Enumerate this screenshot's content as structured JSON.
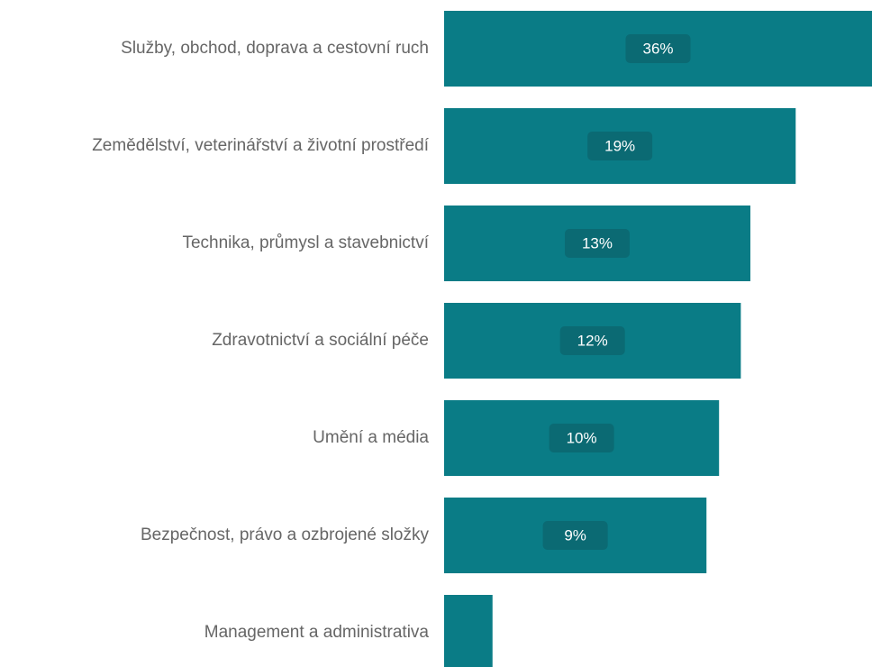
{
  "chart_data": {
    "type": "bar",
    "orientation": "horizontal",
    "log_scale": true,
    "categories": [
      "Služby, obchod, doprava a cestovní ruch",
      "Zemědělství, veterinářství a životní prostředí",
      "Technika, průmysl a stavebnictví",
      "Zdravotnictví a sociální péče",
      "Umění a média",
      "Bezpečnost, právo a ozbrojené složky",
      "Management a administrativa"
    ],
    "values": [
      36,
      19,
      13,
      12,
      10,
      9,
      1.5
    ],
    "value_labels": [
      "36%",
      "19%",
      "13%",
      "12%",
      "10%",
      "9%",
      null
    ],
    "color": "#0a7c86",
    "label_box_color": "#0b6a73",
    "xlim": [
      1,
      36
    ]
  }
}
